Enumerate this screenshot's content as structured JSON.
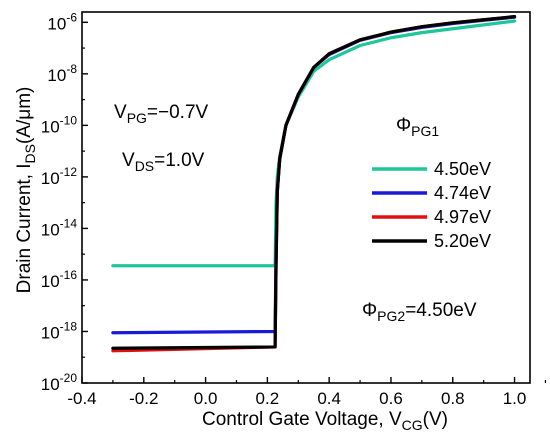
{
  "chart_data": {
    "type": "line",
    "xlabel_main": "Control Gate Voltage, V",
    "xlabel_sub": "CG",
    "xlabel_tail": "(V)",
    "ylabel_main": "Drain Current, I",
    "ylabel_sub": "DS",
    "ylabel_tail": "(A/μm)",
    "xlim": [
      -0.4,
      1.05
    ],
    "ylim_log10": [
      -20,
      -5.6
    ],
    "yscale": "log",
    "x_ticks": [
      {
        "v": -0.4,
        "label": "-0.4"
      },
      {
        "v": -0.2,
        "label": "-0.2"
      },
      {
        "v": 0.0,
        "label": "0.0"
      },
      {
        "v": 0.2,
        "label": "0.2"
      },
      {
        "v": 0.4,
        "label": "0.4"
      },
      {
        "v": 0.6,
        "label": "0.6"
      },
      {
        "v": 0.8,
        "label": "0.8"
      },
      {
        "v": 1.0,
        "label": "1.0"
      }
    ],
    "y_ticks": [
      {
        "v": -20,
        "base": "10",
        "exp": "-20"
      },
      {
        "v": -18,
        "base": "10",
        "exp": "-18"
      },
      {
        "v": -16,
        "base": "10",
        "exp": "-16"
      },
      {
        "v": -14,
        "base": "10",
        "exp": "-14"
      },
      {
        "v": -12,
        "base": "10",
        "exp": "-12"
      },
      {
        "v": -10,
        "base": "10",
        "exp": "-10"
      },
      {
        "v": -8,
        "base": "10",
        "exp": "-8"
      },
      {
        "v": -6,
        "base": "10",
        "exp": "-6"
      }
    ],
    "annotations": {
      "vpg": {
        "main": "V",
        "sub": "PG",
        "tail": "=−0.7V"
      },
      "vds": {
        "main": "V",
        "sub": "DS",
        "tail": "=1.0V"
      },
      "legend_title": {
        "main": "Φ",
        "sub": "PG1"
      },
      "phi_pg2": {
        "main": "Φ",
        "sub": "PG2",
        "tail": "=4.50eV"
      }
    },
    "legend_placement": "center-right",
    "series": [
      {
        "name": "4.50eV",
        "color": "#1fc697",
        "points": [
          [
            -0.3,
            -15.45
          ],
          [
            0.225,
            -15.45
          ],
          [
            0.228,
            -13.0
          ],
          [
            0.232,
            -12.0
          ],
          [
            0.24,
            -11.2
          ],
          [
            0.26,
            -10.0
          ],
          [
            0.3,
            -8.9
          ],
          [
            0.35,
            -7.9
          ],
          [
            0.4,
            -7.45
          ],
          [
            0.5,
            -6.9
          ],
          [
            0.6,
            -6.6
          ],
          [
            0.7,
            -6.4
          ],
          [
            0.8,
            -6.25
          ],
          [
            0.9,
            -6.1
          ],
          [
            1.0,
            -5.95
          ]
        ]
      },
      {
        "name": "4.74eV",
        "color": "#1a1ad6",
        "points": [
          [
            -0.3,
            -18.05
          ],
          [
            0.225,
            -18.0
          ],
          [
            0.228,
            -15.0
          ],
          [
            0.232,
            -12.5
          ],
          [
            0.24,
            -11.3
          ],
          [
            0.26,
            -10.0
          ],
          [
            0.3,
            -8.8
          ],
          [
            0.35,
            -7.75
          ],
          [
            0.4,
            -7.25
          ],
          [
            0.5,
            -6.7
          ],
          [
            0.6,
            -6.4
          ],
          [
            0.7,
            -6.2
          ],
          [
            0.8,
            -6.05
          ],
          [
            0.9,
            -5.92
          ],
          [
            1.0,
            -5.8
          ]
        ]
      },
      {
        "name": "4.97eV",
        "color": "#e01010",
        "points": [
          [
            -0.3,
            -18.75
          ],
          [
            0.225,
            -18.6
          ],
          [
            0.228,
            -15.5
          ],
          [
            0.232,
            -12.6
          ],
          [
            0.24,
            -11.3
          ],
          [
            0.26,
            -10.0
          ],
          [
            0.3,
            -8.8
          ],
          [
            0.35,
            -7.75
          ],
          [
            0.4,
            -7.22
          ],
          [
            0.5,
            -6.68
          ],
          [
            0.6,
            -6.38
          ],
          [
            0.7,
            -6.17
          ],
          [
            0.8,
            -6.02
          ],
          [
            0.9,
            -5.9
          ],
          [
            1.0,
            -5.78
          ]
        ]
      },
      {
        "name": "5.20eV",
        "color": "#000000",
        "points": [
          [
            -0.3,
            -18.65
          ],
          [
            0.225,
            -18.6
          ],
          [
            0.228,
            -15.5
          ],
          [
            0.232,
            -12.6
          ],
          [
            0.24,
            -11.3
          ],
          [
            0.26,
            -10.0
          ],
          [
            0.3,
            -8.8
          ],
          [
            0.35,
            -7.75
          ],
          [
            0.4,
            -7.22
          ],
          [
            0.5,
            -6.68
          ],
          [
            0.6,
            -6.38
          ],
          [
            0.7,
            -6.17
          ],
          [
            0.8,
            -6.02
          ],
          [
            0.9,
            -5.9
          ],
          [
            1.0,
            -5.78
          ]
        ]
      }
    ]
  }
}
